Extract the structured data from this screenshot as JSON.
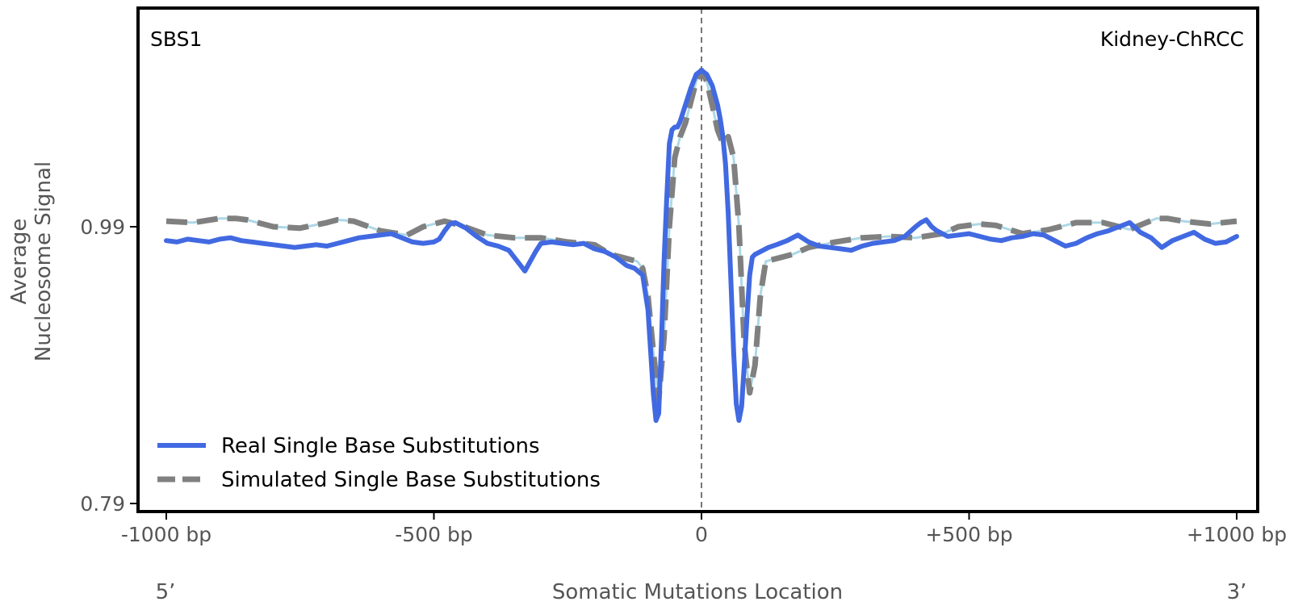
{
  "chart_data": {
    "type": "line",
    "title": "",
    "annotation_left": "SBS1",
    "annotation_right": "Kidney-ChRCC",
    "xlabel": "Somatic Mutations Location",
    "ylabel_line1": "Average",
    "ylabel_line2": "Nucleosome Signal",
    "x_end_left": "5’",
    "x_end_right": "3’",
    "xlim": [
      -1050,
      1050
    ],
    "ylim": [
      0.78,
      1.19
    ],
    "xticks": [
      {
        "value": -1000,
        "label": "-1000 bp"
      },
      {
        "value": -500,
        "label": "-500 bp"
      },
      {
        "value": 0,
        "label": "0"
      },
      {
        "value": 500,
        "label": "+500 bp"
      },
      {
        "value": 1000,
        "label": "+1000 bp"
      }
    ],
    "yticks": [
      {
        "value": 0.79,
        "label": "0.79"
      },
      {
        "value": 0.99,
        "label": "0.99"
      }
    ],
    "vline_x": 0,
    "legend_position": "lower-left",
    "grid": false,
    "series": [
      {
        "name": "Real Single Base Substitutions",
        "color": "#4169E1",
        "style": "solid",
        "x": [
          -1000,
          -980,
          -960,
          -940,
          -920,
          -900,
          -880,
          -860,
          -840,
          -820,
          -800,
          -780,
          -760,
          -740,
          -720,
          -700,
          -680,
          -660,
          -640,
          -620,
          -600,
          -580,
          -560,
          -540,
          -520,
          -500,
          -490,
          -480,
          -470,
          -460,
          -450,
          -440,
          -420,
          -400,
          -380,
          -360,
          -340,
          -330,
          -320,
          -310,
          -300,
          -280,
          -260,
          -240,
          -220,
          -200,
          -180,
          -160,
          -140,
          -125,
          -110,
          -100,
          -95,
          -90,
          -85,
          -80,
          -75,
          -70,
          -65,
          -60,
          -55,
          -50,
          -45,
          -40,
          -35,
          -30,
          -20,
          -10,
          0,
          10,
          20,
          30,
          35,
          40,
          45,
          50,
          55,
          60,
          65,
          70,
          75,
          80,
          85,
          90,
          95,
          100,
          110,
          125,
          140,
          160,
          180,
          200,
          220,
          240,
          260,
          280,
          300,
          320,
          340,
          360,
          380,
          400,
          410,
          420,
          430,
          440,
          460,
          480,
          500,
          520,
          540,
          560,
          580,
          600,
          620,
          640,
          660,
          680,
          700,
          720,
          740,
          760,
          780,
          800,
          820,
          840,
          860,
          880,
          900,
          920,
          940,
          960,
          980,
          1000
        ],
        "values": [
          0.98,
          0.979,
          0.981,
          0.98,
          0.979,
          0.981,
          0.982,
          0.98,
          0.979,
          0.978,
          0.977,
          0.976,
          0.975,
          0.976,
          0.977,
          0.976,
          0.978,
          0.98,
          0.982,
          0.983,
          0.984,
          0.985,
          0.982,
          0.979,
          0.978,
          0.979,
          0.981,
          0.987,
          0.992,
          0.993,
          0.991,
          0.989,
          0.983,
          0.978,
          0.976,
          0.973,
          0.963,
          0.958,
          0.965,
          0.972,
          0.978,
          0.979,
          0.978,
          0.977,
          0.978,
          0.974,
          0.972,
          0.968,
          0.962,
          0.96,
          0.955,
          0.93,
          0.9,
          0.87,
          0.85,
          0.855,
          0.905,
          0.965,
          1.01,
          1.05,
          1.06,
          1.062,
          1.062,
          1.066,
          1.072,
          1.078,
          1.09,
          1.1,
          1.103,
          1.1,
          1.092,
          1.078,
          1.068,
          1.055,
          1.035,
          1.0,
          0.95,
          0.9,
          0.862,
          0.85,
          0.86,
          0.89,
          0.925,
          0.955,
          0.968,
          0.97,
          0.972,
          0.975,
          0.977,
          0.98,
          0.984,
          0.979,
          0.976,
          0.975,
          0.974,
          0.973,
          0.976,
          0.978,
          0.979,
          0.98,
          0.983,
          0.99,
          0.993,
          0.995,
          0.99,
          0.987,
          0.983,
          0.984,
          0.985,
          0.983,
          0.981,
          0.98,
          0.982,
          0.983,
          0.985,
          0.984,
          0.98,
          0.976,
          0.978,
          0.982,
          0.985,
          0.987,
          0.99,
          0.993,
          0.986,
          0.982,
          0.975,
          0.98,
          0.983,
          0.986,
          0.981,
          0.978,
          0.979,
          0.983
        ]
      },
      {
        "name": "Simulated Single Base Substitutions",
        "color": "#808080",
        "style": "dashed",
        "x": [
          -1000,
          -950,
          -900,
          -870,
          -850,
          -800,
          -750,
          -700,
          -680,
          -650,
          -600,
          -550,
          -520,
          -480,
          -450,
          -400,
          -350,
          -300,
          -250,
          -200,
          -170,
          -150,
          -120,
          -110,
          -100,
          -90,
          -80,
          -70,
          -60,
          -50,
          -40,
          -30,
          -20,
          -10,
          0,
          10,
          20,
          30,
          40,
          50,
          60,
          70,
          80,
          90,
          100,
          110,
          120,
          150,
          170,
          200,
          250,
          300,
          350,
          400,
          450,
          480,
          520,
          550,
          600,
          650,
          700,
          750,
          800,
          850,
          870,
          900,
          950,
          1000
        ],
        "values": [
          0.994,
          0.993,
          0.996,
          0.996,
          0.995,
          0.99,
          0.989,
          0.993,
          0.995,
          0.994,
          0.987,
          0.984,
          0.99,
          0.994,
          0.991,
          0.984,
          0.982,
          0.982,
          0.979,
          0.977,
          0.97,
          0.968,
          0.965,
          0.96,
          0.94,
          0.9,
          0.865,
          0.91,
          0.99,
          1.04,
          1.055,
          1.065,
          1.08,
          1.095,
          1.103,
          1.095,
          1.078,
          1.06,
          1.05,
          1.055,
          1.04,
          0.99,
          0.905,
          0.87,
          0.89,
          0.94,
          0.965,
          0.968,
          0.97,
          0.975,
          0.979,
          0.982,
          0.983,
          0.982,
          0.985,
          0.99,
          0.992,
          0.991,
          0.985,
          0.988,
          0.993,
          0.993,
          0.988,
          0.996,
          0.996,
          0.994,
          0.992,
          0.994
        ]
      }
    ]
  }
}
